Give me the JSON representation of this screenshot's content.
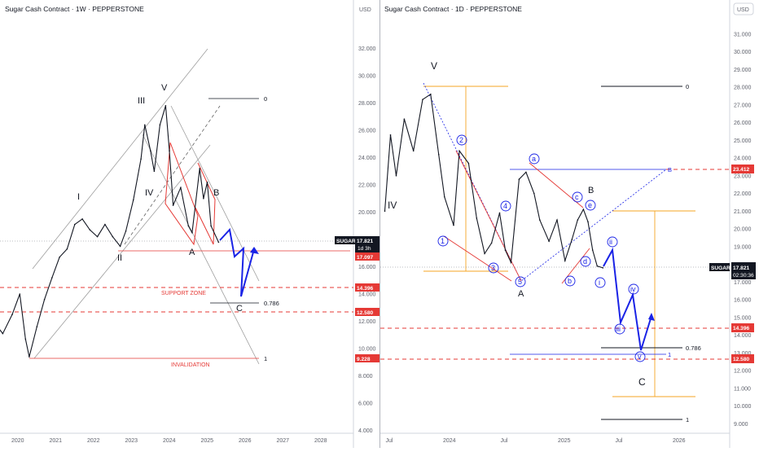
{
  "chart_data": [
    {
      "type": "line",
      "title": "Sugar Cash Contract · 1W · PEPPERSTONE",
      "currency_label": "USD",
      "x_ticks": [
        "2020",
        "2021",
        "2022",
        "2023",
        "2024",
        "2025",
        "2026",
        "2027",
        "2028"
      ],
      "y_ticks": [
        "32.000",
        "30.000",
        "28.000",
        "26.000",
        "24.000",
        "22.000",
        "20.000",
        "18.000",
        "16.000",
        "14.000",
        "12.000",
        "10.000",
        "8.000",
        "6.000",
        "4.000"
      ],
      "ylim": [
        4,
        34
      ],
      "series": [
        {
          "x": [
            2019.35,
            2019.6,
            2019.85,
            2020.05,
            2020.2,
            2020.3,
            2020.5,
            2020.7,
            2020.9,
            2021.1,
            2021.3,
            2021.5,
            2021.7,
            2021.9,
            2022.1,
            2022.3,
            2022.5,
            2022.7,
            2022.85,
            2023.05,
            2023.25,
            2023.35,
            2023.5,
            2023.6,
            2023.75,
            2023.9,
            2024.0,
            2024.1,
            2024.3,
            2024.5,
            2024.6,
            2024.8,
            2024.9,
            2025.0,
            2025.1,
            2025.3
          ],
          "y": [
            12.0,
            11.1,
            12.5,
            14.0,
            10.7,
            9.4,
            11.6,
            13.6,
            15.2,
            16.7,
            17.3,
            19.1,
            19.5,
            18.7,
            18.2,
            19.1,
            18.2,
            17.5,
            18.6,
            20.9,
            23.9,
            26.4,
            24.5,
            23.0,
            26.4,
            27.8,
            24.5,
            20.5,
            21.8,
            19.0,
            18.5,
            23.2,
            21.0,
            22.2,
            19.0,
            17.8
          ]
        }
      ],
      "price_tags": [
        {
          "label": "SUGAR",
          "value": "17.821",
          "sub": "1d 3h"
        },
        {
          "value": "17.097"
        },
        {
          "value": "14.396"
        },
        {
          "value": "12.580"
        },
        {
          "value": "9.228"
        }
      ],
      "annotations": {
        "waves": [
          "I",
          "II",
          "III",
          "IV",
          "V",
          "A",
          "B",
          "C"
        ],
        "fib_0": "0",
        "fib_786": "0.786",
        "fib_1": "1",
        "support": "SUPPORT ZONE",
        "invalidation": "INVALIDATION"
      }
    },
    {
      "type": "line",
      "title": "Sugar Cash Contract · 1D · PEPPERSTONE",
      "currency_label": "USD",
      "x_ticks": [
        "Jul",
        "2024",
        "Jul",
        "2025",
        "Jul",
        "2026"
      ],
      "y_ticks": [
        "31.000",
        "30.000",
        "29.000",
        "28.000",
        "27.000",
        "26.000",
        "25.000",
        "24.000",
        "23.000",
        "22.000",
        "21.000",
        "20.000",
        "19.000",
        "18.000",
        "17.000",
        "16.000",
        "15.000",
        "14.000",
        "13.000",
        "12.000",
        "11.000",
        "10.000",
        "9.000"
      ],
      "ylim": [
        8.6,
        32
      ],
      "series": [
        {
          "x": [
            2023.45,
            2023.5,
            2023.55,
            2023.62,
            2023.7,
            2023.78,
            2023.85,
            2023.92,
            2023.97,
            2024.05,
            2024.1,
            2024.18,
            2024.25,
            2024.32,
            2024.38,
            2024.45,
            2024.5,
            2024.55,
            2024.62,
            2024.68,
            2024.75,
            2024.8,
            2024.88,
            2024.95,
            2025.02,
            2025.08,
            2025.13,
            2025.18,
            2025.22,
            2025.26,
            2025.3,
            2025.35
          ],
          "y": [
            21.0,
            25.3,
            23.0,
            26.2,
            24.4,
            27.3,
            27.6,
            24.2,
            21.8,
            20.2,
            24.4,
            23.7,
            20.6,
            18.6,
            19.2,
            20.9,
            18.8,
            18.1,
            22.8,
            23.2,
            22.0,
            20.5,
            19.3,
            20.5,
            18.2,
            19.4,
            20.5,
            21.1,
            20.4,
            18.8,
            17.9,
            17.8
          ]
        }
      ],
      "price_tags": [
        {
          "value": "23.412"
        },
        {
          "label": "SUGAR",
          "value": "17.821",
          "sub": "02:30:36"
        },
        {
          "value": "14.396"
        },
        {
          "value": "12.580"
        }
      ],
      "annotations": {
        "waves": [
          "IV",
          "V",
          "A",
          "B",
          "C"
        ],
        "circled": [
          "1",
          "2",
          "3",
          "4",
          "5",
          "a",
          "b",
          "c",
          "d",
          "e",
          "i",
          "ii",
          "iii",
          "iv",
          "v"
        ],
        "fib_0": "0",
        "fib_786": "0.786",
        "fib_1": "1",
        "fib_B": "B"
      }
    }
  ]
}
